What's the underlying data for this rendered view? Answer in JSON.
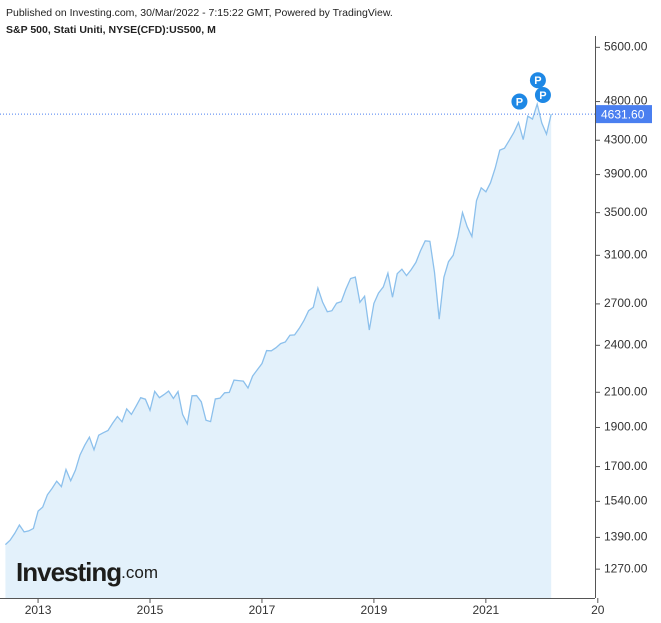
{
  "header": {
    "published": "Published on Investing.com, 30/Mar/2022 - 7:15:22 GMT, Powered by TradingView.",
    "symbol": "S&P 500, Stati Uniti, NYSE(CFD):US500, M"
  },
  "logo": {
    "name": "Investing",
    "suffix": ".com"
  },
  "chart_data": {
    "type": "area",
    "yscale": "log",
    "color": "#8cc0ec",
    "fill": "#e3f1fb",
    "xlim": [
      2012.32,
      2022.95
    ],
    "ylim": [
      1180,
      5800
    ],
    "xticks": [
      2013,
      2015,
      2017,
      2019,
      2021,
      {
        "value": 2023,
        "label": "20"
      }
    ],
    "yticks": [
      {
        "value": 1270,
        "label": "1270.00"
      },
      {
        "value": 1390,
        "label": "1390.00"
      },
      {
        "value": 1540,
        "label": "1540.00"
      },
      {
        "value": 1700,
        "label": "1700.00"
      },
      {
        "value": 1900,
        "label": "1900.00"
      },
      {
        "value": 2100,
        "label": "2100.00"
      },
      {
        "value": 2400,
        "label": "2400.00"
      },
      {
        "value": 2700,
        "label": "2700.00"
      },
      {
        "value": 3100,
        "label": "3100.00"
      },
      {
        "value": 3500,
        "label": "3500.00"
      },
      {
        "value": 3900,
        "label": "3900.00"
      },
      {
        "value": 4300,
        "label": "4300.00"
      },
      {
        "value": 4800,
        "label": "4800.00"
      },
      {
        "value": 5600,
        "label": "5600.00"
      }
    ],
    "last_price": {
      "value": 4631.6,
      "label": "4631.60"
    },
    "markers": [
      {
        "label": "P",
        "x": 2021.6,
        "y": 4800
      },
      {
        "label": "P",
        "x": 2021.93,
        "y": 5100
      },
      {
        "label": "P",
        "x": 2022.02,
        "y": 4890
      }
    ],
    "x": [
      2012.417,
      2012.5,
      2012.583,
      2012.667,
      2012.75,
      2012.833,
      2012.917,
      2013,
      2013.083,
      2013.167,
      2013.25,
      2013.333,
      2013.417,
      2013.5,
      2013.583,
      2013.667,
      2013.75,
      2013.833,
      2013.917,
      2014,
      2014.083,
      2014.167,
      2014.25,
      2014.333,
      2014.417,
      2014.5,
      2014.583,
      2014.667,
      2014.75,
      2014.833,
      2014.917,
      2015,
      2015.083,
      2015.167,
      2015.25,
      2015.333,
      2015.417,
      2015.5,
      2015.583,
      2015.667,
      2015.75,
      2015.833,
      2015.917,
      2016,
      2016.083,
      2016.167,
      2016.25,
      2016.333,
      2016.417,
      2016.5,
      2016.583,
      2016.667,
      2016.75,
      2016.833,
      2016.917,
      2017,
      2017.083,
      2017.167,
      2017.25,
      2017.333,
      2017.417,
      2017.5,
      2017.583,
      2017.667,
      2017.75,
      2017.833,
      2017.917,
      2018,
      2018.083,
      2018.167,
      2018.25,
      2018.333,
      2018.417,
      2018.5,
      2018.583,
      2018.667,
      2018.75,
      2018.833,
      2018.917,
      2019,
      2019.083,
      2019.167,
      2019.25,
      2019.333,
      2019.417,
      2019.5,
      2019.583,
      2019.667,
      2019.75,
      2019.833,
      2019.917,
      2020,
      2020.083,
      2020.167,
      2020.25,
      2020.333,
      2020.417,
      2020.5,
      2020.583,
      2020.667,
      2020.75,
      2020.833,
      2020.917,
      2021,
      2021.083,
      2021.167,
      2021.25,
      2021.333,
      2021.417,
      2021.5,
      2021.583,
      2021.667,
      2021.75,
      2021.833,
      2021.917,
      2022,
      2022.083,
      2022.167
    ],
    "values": [
      1362,
      1379,
      1406,
      1440,
      1412,
      1416,
      1426,
      1498,
      1515,
      1569,
      1598,
      1631,
      1606,
      1686,
      1633,
      1682,
      1757,
      1806,
      1848,
      1783,
      1859,
      1872,
      1884,
      1924,
      1960,
      1931,
      2003,
      1972,
      2018,
      2068,
      2059,
      1995,
      2105,
      2068,
      2086,
      2107,
      2063,
      2104,
      1972,
      1920,
      2079,
      2080,
      2044,
      1940,
      1932,
      2060,
      2065,
      2097,
      2099,
      2174,
      2171,
      2168,
      2126,
      2199,
      2239,
      2279,
      2364,
      2363,
      2384,
      2412,
      2423,
      2470,
      2472,
      2519,
      2575,
      2648,
      2674,
      2824,
      2714,
      2641,
      2648,
      2705,
      2718,
      2816,
      2902,
      2914,
      2712,
      2760,
      2507,
      2704,
      2784,
      2834,
      2946,
      2752,
      2942,
      2980,
      2926,
      2977,
      3038,
      3141,
      3231,
      3226,
      2954,
      2585,
      2912,
      3044,
      3100,
      3271,
      3500,
      3363,
      3270,
      3622,
      3756,
      3714,
      3811,
      3973,
      4181,
      4204,
      4298,
      4395,
      4523,
      4308,
      4605,
      4567,
      4766,
      4516,
      4374,
      4631.6
    ]
  }
}
